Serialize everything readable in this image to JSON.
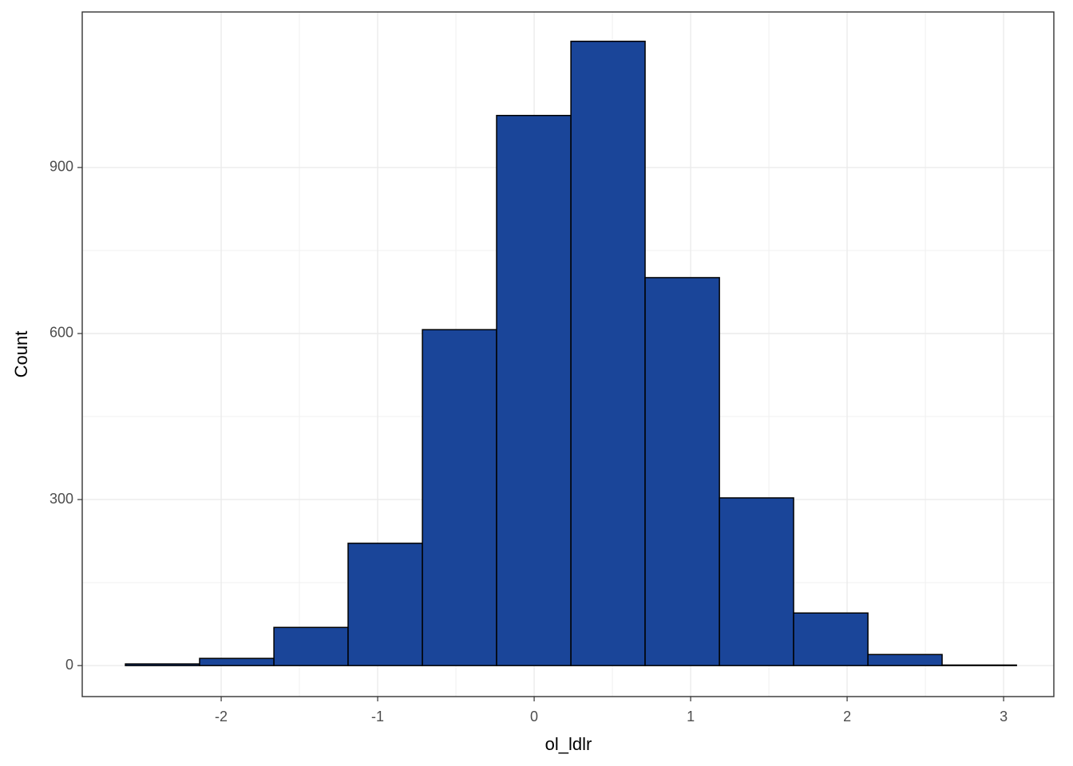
{
  "chart_data": {
    "type": "histogram",
    "x_label": "ol_ldlr",
    "y_label": "Count",
    "bins": [
      -2.612,
      -2.138,
      -1.663,
      -1.189,
      -0.714,
      -0.24,
      0.235,
      0.709,
      1.184,
      1.658,
      2.133,
      2.607,
      3.082
    ],
    "counts": [
      3,
      13,
      69,
      221,
      607,
      994,
      1128,
      701,
      303,
      95,
      20,
      1
    ],
    "color": "#1a4599",
    "edge_color": "#000000",
    "xlim": [
      -2.888,
      3.321
    ],
    "xticks": [
      -2,
      -1,
      0,
      1,
      2,
      3
    ],
    "ylim": [
      -56,
      1181
    ],
    "yticks": [
      0,
      300,
      600,
      900
    ],
    "grid": true
  }
}
